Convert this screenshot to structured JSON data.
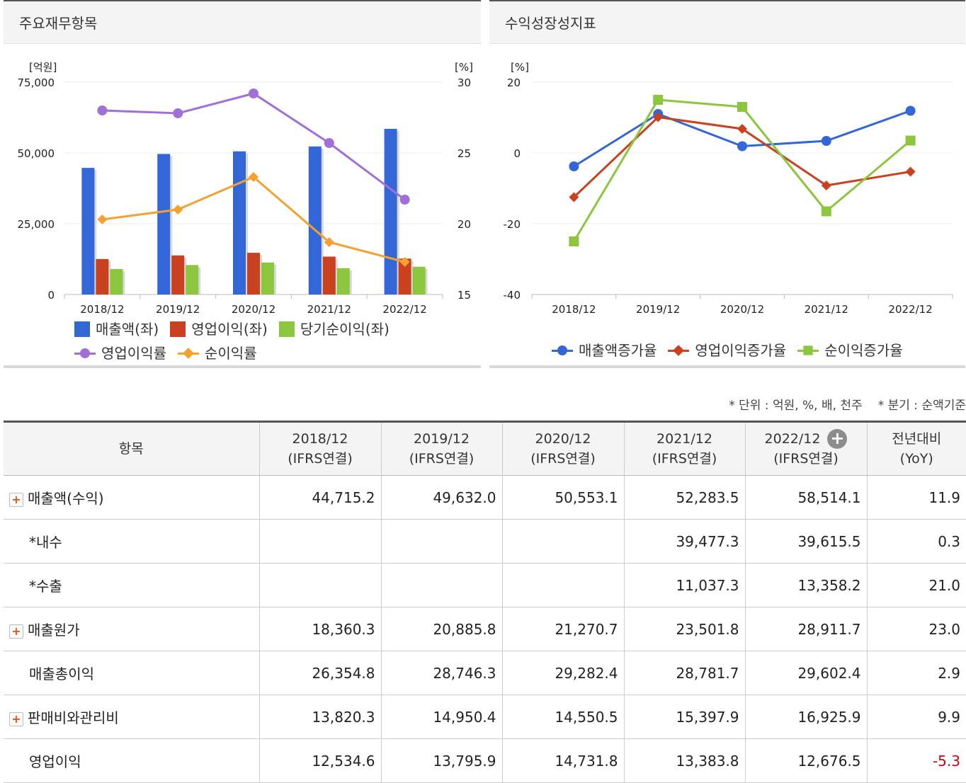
{
  "left_panel": {
    "title": "주요재무항목"
  },
  "right_panel": {
    "title": "수익성장성지표"
  },
  "chart_data": [
    {
      "type": "bar",
      "title": "주요재무항목",
      "categories": [
        "2018/12",
        "2019/12",
        "2020/12",
        "2021/12",
        "2022/12"
      ],
      "ylabel_left": "[억원]",
      "ylabel_right": "[%]",
      "ylim_left": [
        0,
        75000
      ],
      "ylim_right": [
        15,
        30
      ],
      "yticks_left": [
        "75,000",
        "50,000",
        "25,000",
        "0"
      ],
      "yticks_right": [
        "30",
        "25",
        "20",
        "15"
      ],
      "series": [
        {
          "name": "매출액(좌)",
          "kind": "bar",
          "axis": "left",
          "color": "#3366d6",
          "values": [
            44715.2,
            49632.0,
            50553.1,
            52283.5,
            58514.1
          ]
        },
        {
          "name": "영업이익(좌)",
          "kind": "bar",
          "axis": "left",
          "color": "#c9411f",
          "values": [
            12534.6,
            13795.9,
            14731.8,
            13383.8,
            12676.5
          ]
        },
        {
          "name": "당기순이익(좌)",
          "kind": "bar",
          "axis": "left",
          "color": "#8cc63f",
          "values": [
            9000,
            10400,
            11300,
            9300,
            9800
          ]
        },
        {
          "name": "영업이익률",
          "kind": "line",
          "axis": "right",
          "marker": "circle",
          "color": "#a070d8",
          "values": [
            28.0,
            27.8,
            29.2,
            25.7,
            21.7
          ]
        },
        {
          "name": "순이익률",
          "kind": "line",
          "axis": "right",
          "marker": "diamond",
          "color": "#f5a030",
          "values": [
            20.3,
            21.0,
            23.3,
            18.7,
            17.3
          ]
        }
      ]
    },
    {
      "type": "line",
      "title": "수익성장성지표",
      "categories": [
        "2018/12",
        "2019/12",
        "2020/12",
        "2021/12",
        "2022/12"
      ],
      "ylabel": "[%]",
      "ylim": [
        -40,
        20
      ],
      "yticks": [
        "20",
        "0",
        "-20",
        "-40"
      ],
      "series": [
        {
          "name": "매출액증가율",
          "marker": "circle",
          "color": "#3366d6",
          "values": [
            -3.8,
            11.0,
            1.9,
            3.4,
            11.9
          ]
        },
        {
          "name": "영업이익증가율",
          "marker": "diamond",
          "color": "#c9411f",
          "values": [
            -12.5,
            10.1,
            6.8,
            -9.2,
            -5.3
          ]
        },
        {
          "name": "순이익증가율",
          "marker": "square",
          "color": "#8cc63f",
          "values": [
            -25.0,
            15.0,
            13.0,
            -16.5,
            3.5
          ]
        }
      ]
    }
  ],
  "note": {
    "unit": "* 단위 : 억원, %, 배, 천주",
    "quarter": "* 분기 : 순액기준"
  },
  "table": {
    "headers": [
      {
        "line1": "항목",
        "line2": ""
      },
      {
        "line1": "2018/12",
        "line2": "(IFRS연결)"
      },
      {
        "line1": "2019/12",
        "line2": "(IFRS연결)"
      },
      {
        "line1": "2020/12",
        "line2": "(IFRS연결)"
      },
      {
        "line1": "2021/12",
        "line2": "(IFRS연결)"
      },
      {
        "line1": "2022/12",
        "line2": "(IFRS연결)"
      },
      {
        "line1": "전년대비",
        "line2": "(YoY)"
      }
    ],
    "rows": [
      {
        "label": "매출액(수익)",
        "expandable": true,
        "indent": false,
        "values": [
          "44,715.2",
          "49,632.0",
          "50,553.1",
          "52,283.5",
          "58,514.1",
          "11.9"
        ]
      },
      {
        "label": "*내수",
        "expandable": false,
        "indent": true,
        "values": [
          "",
          "",
          "",
          "39,477.3",
          "39,615.5",
          "0.3"
        ]
      },
      {
        "label": "*수출",
        "expandable": false,
        "indent": true,
        "values": [
          "",
          "",
          "",
          "11,037.3",
          "13,358.2",
          "21.0"
        ]
      },
      {
        "label": "매출원가",
        "expandable": true,
        "indent": false,
        "values": [
          "18,360.3",
          "20,885.8",
          "21,270.7",
          "23,501.8",
          "28,911.7",
          "23.0"
        ]
      },
      {
        "label": "매출총이익",
        "expandable": false,
        "indent": true,
        "values": [
          "26,354.8",
          "28,746.3",
          "29,282.4",
          "28,781.7",
          "29,602.4",
          "2.9"
        ]
      },
      {
        "label": "판매비와관리비",
        "expandable": true,
        "indent": false,
        "values": [
          "13,820.3",
          "14,950.4",
          "14,550.5",
          "15,397.9",
          "16,925.9",
          "9.9"
        ]
      },
      {
        "label": "영업이익",
        "expandable": false,
        "indent": true,
        "values": [
          "12,534.6",
          "13,795.9",
          "14,731.8",
          "13,383.8",
          "12,676.5",
          "-5.3"
        ]
      }
    ]
  }
}
